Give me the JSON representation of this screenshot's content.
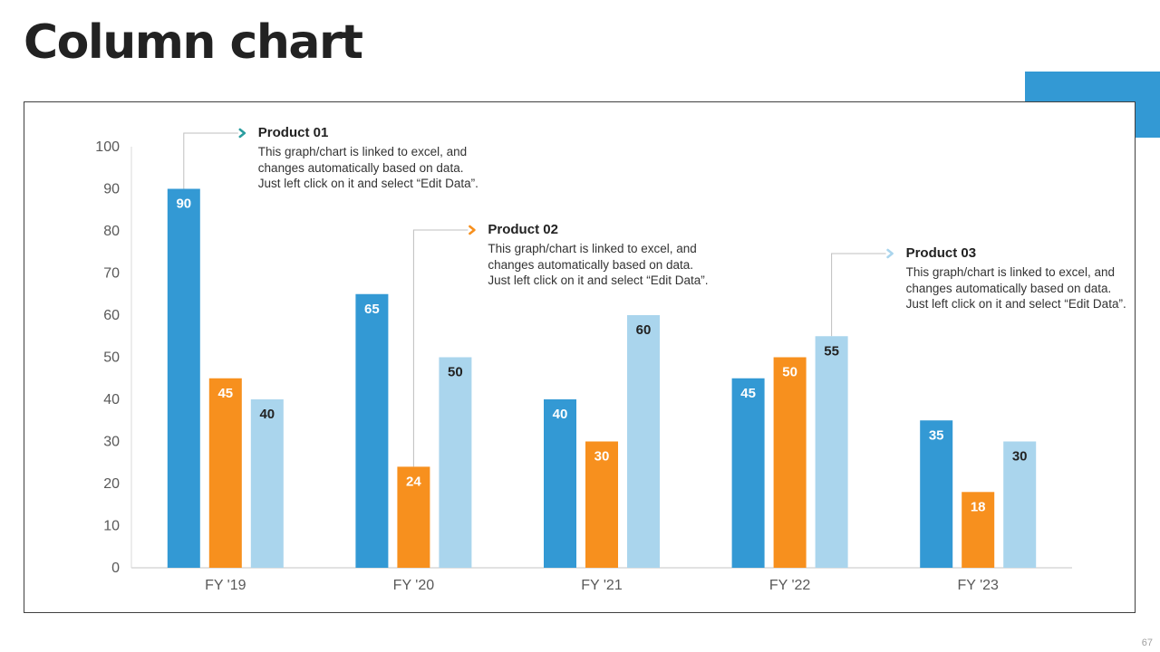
{
  "slide": {
    "title": "Column chart",
    "page_number": "67"
  },
  "colors": {
    "accent": "#3399d4",
    "series": [
      "#3399d4",
      "#f7901e",
      "#aad5ed"
    ],
    "label_text": [
      "#ffffff",
      "#ffffff",
      "#222222"
    ],
    "axis_line": "#d9d9d9",
    "tick_text": "#595959",
    "frame": "#404040"
  },
  "callouts": [
    {
      "title": "Product 01",
      "body": [
        "This graph/chart is linked to excel, and",
        "changes automatically based on data.",
        "Just left click on it and select “Edit Data”."
      ],
      "arrow_color": "#2a9d9f",
      "anchor_category": 0,
      "anchor_series": 0
    },
    {
      "title": "Product 02",
      "body": [
        "This graph/chart is linked to excel, and",
        "changes automatically based on data.",
        "Just left click on it and select “Edit Data”."
      ],
      "arrow_color": "#f7901e",
      "anchor_category": 1,
      "anchor_series": 1
    },
    {
      "title": "Product 03",
      "body": [
        "This graph/chart is linked to excel, and",
        "changes automatically based on data.",
        "Just left click on it and select “Edit Data”."
      ],
      "arrow_color": "#aad5ed",
      "anchor_category": 3,
      "anchor_series": 2
    }
  ],
  "chart_data": {
    "type": "bar",
    "title": "",
    "xlabel": "",
    "ylabel": "",
    "categories": [
      "FY '19",
      "FY '20",
      "FY '21",
      "FY '22",
      "FY '23"
    ],
    "series": [
      {
        "values": [
          90,
          65,
          40,
          45,
          35
        ]
      },
      {
        "values": [
          45,
          24,
          30,
          50,
          18
        ]
      },
      {
        "values": [
          40,
          50,
          60,
          55,
          30
        ]
      }
    ],
    "ylim": [
      0,
      100
    ],
    "yticks": [
      0,
      10,
      20,
      30,
      40,
      50,
      60,
      70,
      80,
      90,
      100
    ],
    "grid": false,
    "legend": "none",
    "data_labels": true
  }
}
